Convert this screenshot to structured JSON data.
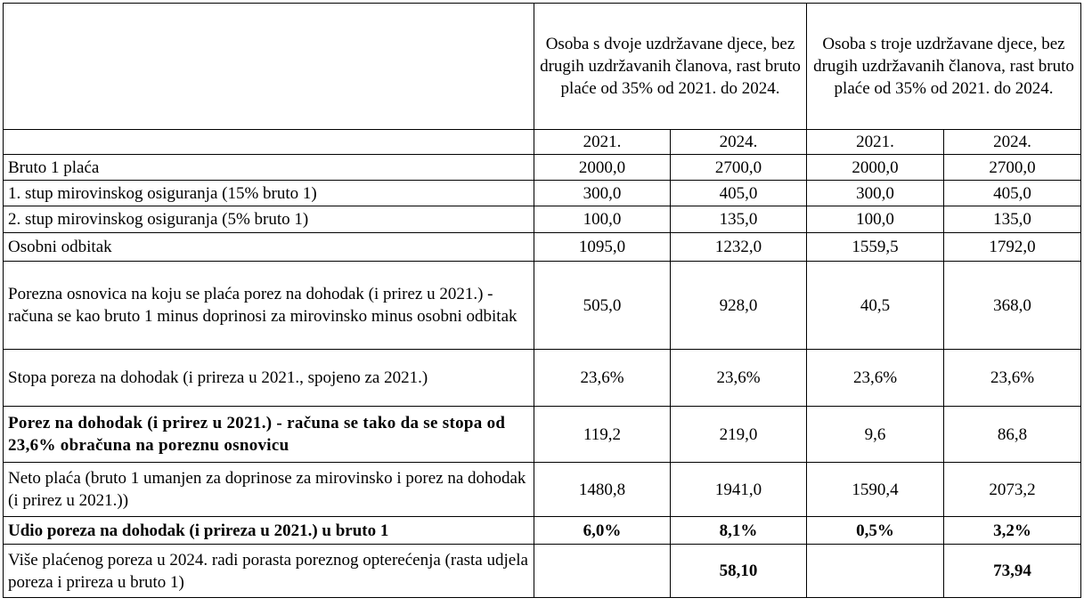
{
  "header": {
    "group1": "Osoba s dvoje uzdržavane djece, bez drugih uzdržavanih članova, rast bruto plaće od 35% od 2021. do 2024.",
    "group2": "Osoba s troje uzdržavane djece, bez drugih uzdržavanih članova, rast bruto plaće od 35% od 2021. do 2024.",
    "years": [
      "2021.",
      "2024.",
      "2021.",
      "2024."
    ]
  },
  "rows": [
    {
      "label": "Bruto 1 plaća",
      "values": [
        "2000,0",
        "2700,0",
        "2000,0",
        "2700,0"
      ]
    },
    {
      "label": "1. stup mirovinskog osiguranja (15% bruto 1)",
      "values": [
        "300,0",
        "405,0",
        "300,0",
        "405,0"
      ]
    },
    {
      "label": "2. stup mirovinskog osiguranja (5% bruto 1)",
      "values": [
        "100,0",
        "135,0",
        "100,0",
        "135,0"
      ]
    },
    {
      "label": "Osobni odbitak",
      "values": [
        "1095,0",
        "1232,0",
        "1559,5",
        "1792,0"
      ]
    },
    {
      "label": "Porezna osnovica na koju se plaća porez na dohodak (i prirez u 2021.) - računa se kao bruto 1 minus doprinosi za mirovinsko minus osobni odbitak",
      "values": [
        "505,0",
        "928,0",
        "40,5",
        "368,0"
      ]
    },
    {
      "label": "Stopa poreza na dohodak (i prireza u 2021., spojeno za 2021.)",
      "values": [
        "23,6%",
        "23,6%",
        "23,6%",
        "23,6%"
      ]
    },
    {
      "label": "Porez na dohodak (i prirez u 2021.) - računa se tako da se stopa od 23,6% obračuna na poreznu osnovicu",
      "values": [
        "119,2",
        "219,0",
        "9,6",
        "86,8"
      ]
    },
    {
      "label": "Neto plaća (bruto 1 umanjen za doprinose za mirovinsko i porez na dohodak (i prirez u 2021.))",
      "values": [
        "1480,8",
        "1941,0",
        "1590,4",
        "2073,2"
      ]
    },
    {
      "label": "Udio poreza na dohodak (i prireza u 2021.) u bruto 1",
      "values": [
        "6,0%",
        "8,1%",
        "0,5%",
        "3,2%"
      ]
    },
    {
      "label": "Više plaćenog poreza u 2024. radi porasta poreznog opterećenja (rasta udjela poreza i prireza u bruto 1)",
      "values": [
        "",
        "58,10",
        "",
        "73,94"
      ]
    }
  ]
}
